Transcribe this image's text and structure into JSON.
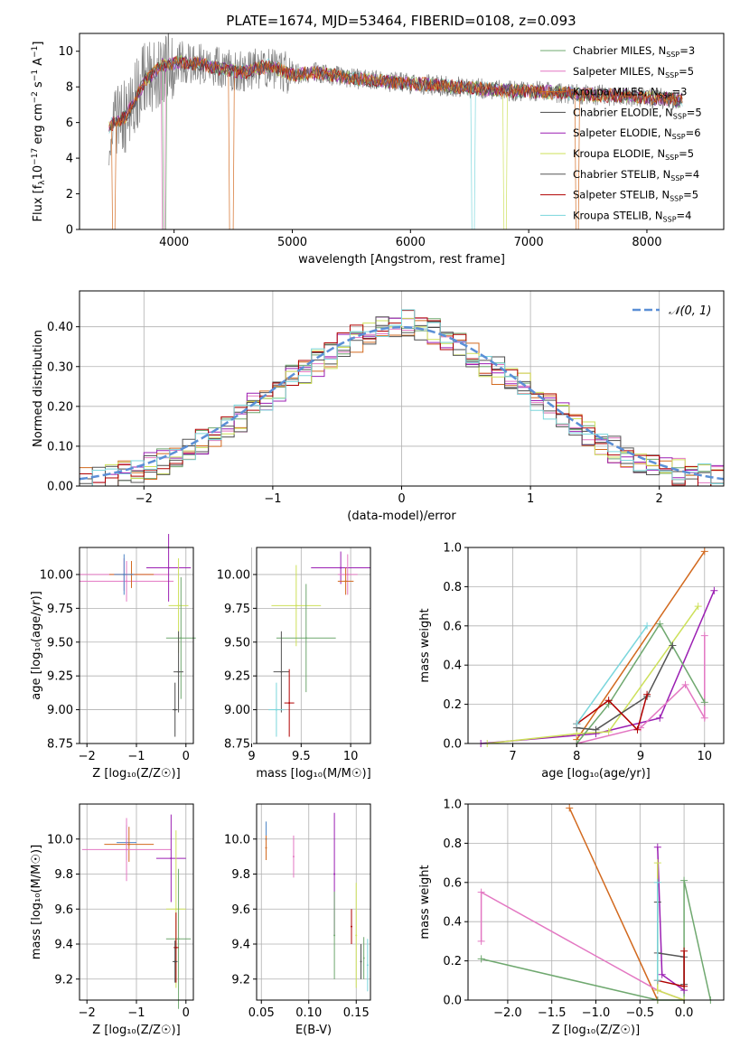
{
  "figure_title": "PLATE=1674, MJD=53464, FIBERID=0108, z=0.093",
  "colors": {
    "chabrier_miles": "#6fa86f",
    "salpeter_miles": "#e377c2",
    "kroupa_miles": "#d2691e",
    "chabrier_elodie": "#4a4a4a",
    "salpeter_elodie": "#9b1fb3",
    "kroupa_elodie": "#cde05a",
    "chabrier_stelib": "#555555",
    "salpeter_stelib": "#b00000",
    "kroupa_stelib": "#7ad6dc",
    "normal_curve": "#5b8fd6",
    "miles_main_line": "#d2691e",
    "blue": "#4f86c6"
  },
  "chart_data": [
    {
      "id": "spectrum",
      "type": "line",
      "title": "PLATE=1674, MJD=53464, FIBERID=0108, z=0.093",
      "xlabel": "wavelength [Angstrom, rest frame]",
      "ylabel": "Flux [f",
      "ylabel_sub": "λ",
      "ylabel_rest": "10",
      "ylabel_exp1": "−17",
      "ylabel_mid": " erg cm",
      "ylabel_exp2": "−2",
      "ylabel_s": " s",
      "ylabel_exp3": "−1",
      "ylabel_end": " A",
      "ylabel_exp4": "−1",
      "ylabel_close": "]",
      "xlim": [
        3200,
        8650
      ],
      "ylim": [
        0,
        11
      ],
      "xticks": [
        4000,
        5000,
        6000,
        7000,
        8000
      ],
      "yticks": [
        0,
        2,
        4,
        6,
        8,
        10
      ],
      "continuum": {
        "x": [
          3450,
          3600,
          3750,
          3900,
          4050,
          4200,
          4400,
          4600,
          4800,
          5000,
          5200,
          5400,
          5600,
          5800,
          6000,
          6200,
          6400,
          6600,
          6800,
          7000,
          7200,
          7400,
          7600,
          7800,
          8000,
          8200,
          8300
        ],
        "y": [
          5.8,
          6.4,
          8.3,
          9.2,
          9.4,
          9.3,
          9.0,
          8.8,
          9.2,
          8.7,
          8.8,
          8.6,
          8.4,
          8.3,
          8.2,
          8.1,
          8.0,
          7.9,
          7.8,
          7.75,
          7.7,
          7.6,
          7.55,
          7.5,
          7.4,
          7.3,
          7.25
        ]
      },
      "legend": [
        {
          "label": "Chabrier MILES, N",
          "sub": "SSP",
          "value": "=3",
          "color": "chabrier_miles"
        },
        {
          "label": "Salpeter MILES, N",
          "sub": "SSP",
          "value": "=5",
          "color": "salpeter_miles"
        },
        {
          "label": "Kroupa MILES, N",
          "sub": "SSP",
          "value": "=3",
          "color": "kroupa_miles"
        },
        {
          "label": "Chabrier ELODIE, N",
          "sub": "SSP",
          "value": "=5",
          "color": "chabrier_elodie"
        },
        {
          "label": "Salpeter ELODIE, N",
          "sub": "SSP",
          "value": "=6",
          "color": "salpeter_elodie"
        },
        {
          "label": "Kroupa ELODIE, N",
          "sub": "SSP",
          "value": "=5",
          "color": "kroupa_elodie"
        },
        {
          "label": "Chabrier STELIB, N",
          "sub": "SSP",
          "value": "=4",
          "color": "chabrier_stelib"
        },
        {
          "label": "Salpeter STELIB, N",
          "sub": "SSP",
          "value": "=5",
          "color": "salpeter_stelib"
        },
        {
          "label": "Kroupa STELIB, N",
          "sub": "SSP",
          "value": "=4",
          "color": "kroupa_stelib"
        }
      ],
      "legend_placement": "upper-right"
    },
    {
      "id": "residuals",
      "type": "step",
      "xlabel": "(data-model)/error",
      "ylabel": "Normed distribution",
      "xlim": [
        -2.5,
        2.5
      ],
      "ylim": [
        0,
        0.49
      ],
      "xticks": [
        -2,
        -1,
        0,
        1,
        2
      ],
      "yticks": [
        0.0,
        0.1,
        0.2,
        0.3,
        0.4
      ],
      "grid": true,
      "bin_edges": [
        -2.5,
        -2.4,
        -2.3,
        -2.2,
        -2.1,
        -2.0,
        -1.9,
        -1.8,
        -1.7,
        -1.6,
        -1.5,
        -1.4,
        -1.3,
        -1.2,
        -1.1,
        -1.0,
        -0.9,
        -0.8,
        -0.7,
        -0.6,
        -0.5,
        -0.4,
        -0.3,
        -0.2,
        -0.1,
        0.0,
        0.1,
        0.2,
        0.3,
        0.4,
        0.5,
        0.6,
        0.7,
        0.8,
        0.9,
        1.0,
        1.1,
        1.2,
        1.3,
        1.4,
        1.5,
        1.6,
        1.7,
        1.8,
        1.9,
        2.0,
        2.1,
        2.2,
        2.3,
        2.4,
        2.5
      ],
      "hist_base": [
        0.015,
        0.02,
        0.025,
        0.03,
        0.04,
        0.05,
        0.06,
        0.075,
        0.09,
        0.11,
        0.13,
        0.15,
        0.17,
        0.2,
        0.22,
        0.24,
        0.27,
        0.29,
        0.31,
        0.33,
        0.35,
        0.37,
        0.39,
        0.4,
        0.405,
        0.41,
        0.4,
        0.39,
        0.37,
        0.35,
        0.33,
        0.31,
        0.29,
        0.27,
        0.25,
        0.22,
        0.2,
        0.18,
        0.16,
        0.13,
        0.11,
        0.09,
        0.08,
        0.065,
        0.055,
        0.045,
        0.035,
        0.03,
        0.025,
        0.02
      ],
      "normal_label": "𝒩(0, 1)",
      "legend_placement": "upper-right"
    },
    {
      "id": "z-age",
      "type": "scatter",
      "xlabel": "Z [log₁₀(Z/Z☉)]",
      "ylabel": "age  [log₁₀(age/yr)]",
      "xlim": [
        -2.15,
        0.15
      ],
      "ylim": [
        8.75,
        10.2
      ],
      "xticks": [
        -2,
        -1,
        0
      ],
      "yticks": [
        8.75,
        9.0,
        9.25,
        9.5,
        9.75,
        10.0
      ],
      "grid": true,
      "points": [
        {
          "x": -1.25,
          "y": 10.0,
          "ex": 0.9,
          "ey": 0.12,
          "c": "salpeter_miles"
        },
        {
          "x": -1.2,
          "y": 9.95,
          "ex": 0.95,
          "ey": 0.15,
          "c": "salpeter_miles"
        },
        {
          "x": -1.1,
          "y": 10.0,
          "ex": 0.45,
          "ey": 0.1,
          "c": "kroupa_miles"
        },
        {
          "x": -1.25,
          "y": 10.0,
          "ex": 0.2,
          "ey": 0.15,
          "c": "blue"
        },
        {
          "x": -0.35,
          "y": 10.05,
          "ex": 0.45,
          "ey": 0.25,
          "c": "salpeter_elodie"
        },
        {
          "x": -0.15,
          "y": 9.77,
          "ex": 0.2,
          "ey": 0.35,
          "c": "kroupa_elodie"
        },
        {
          "x": -0.1,
          "y": 9.53,
          "ex": 0.3,
          "ey": 0.45,
          "c": "chabrier_miles"
        },
        {
          "x": -0.15,
          "y": 9.28,
          "ex": 0.1,
          "ey": 0.3,
          "c": "chabrier_stelib"
        },
        {
          "x": -0.22,
          "y": 9.0,
          "ex": 0.05,
          "ey": 0.2,
          "c": "chabrier_elodie"
        }
      ]
    },
    {
      "id": "mass-age",
      "type": "scatter",
      "xlabel": "mass [log₁₀(M/M☉)]",
      "ylabel": "",
      "xlim": [
        9.05,
        10.2
      ],
      "ylim": [
        8.75,
        10.2
      ],
      "xticks": [
        9.0,
        9.5,
        10.0
      ],
      "yticks": [
        8.75,
        9.0,
        9.25,
        9.5,
        9.75,
        10.0
      ],
      "grid": true,
      "points": [
        {
          "x": 9.9,
          "y": 10.05,
          "ex": 0.3,
          "ey": 0.12,
          "c": "salpeter_elodie"
        },
        {
          "x": 9.97,
          "y": 10.0,
          "ex": 0.1,
          "ey": 0.15,
          "c": "salpeter_miles"
        },
        {
          "x": 9.95,
          "y": 9.95,
          "ex": 0.08,
          "ey": 0.1,
          "c": "kroupa_miles"
        },
        {
          "x": 9.45,
          "y": 9.77,
          "ex": 0.25,
          "ey": 0.3,
          "c": "kroupa_elodie"
        },
        {
          "x": 9.55,
          "y": 9.53,
          "ex": 0.3,
          "ey": 0.4,
          "c": "chabrier_miles"
        },
        {
          "x": 9.3,
          "y": 9.28,
          "ex": 0.08,
          "ey": 0.3,
          "c": "chabrier_stelib"
        },
        {
          "x": 9.38,
          "y": 9.05,
          "ex": 0.05,
          "ey": 0.25,
          "c": "salpeter_stelib"
        },
        {
          "x": 9.25,
          "y": 9.0,
          "ex": 0.08,
          "ey": 0.2,
          "c": "kroupa_stelib"
        }
      ]
    },
    {
      "id": "age-weight",
      "type": "line",
      "xlabel": "age  [log₁₀(age/yr)]",
      "ylabel": "mass weight",
      "xlim": [
        6.3,
        10.3
      ],
      "ylim": [
        0,
        1.0
      ],
      "xticks": [
        7,
        8,
        9,
        10
      ],
      "yticks": [
        0.0,
        0.2,
        0.4,
        0.6,
        0.8,
        1.0
      ],
      "grid": true,
      "series": [
        {
          "c": "kroupa_miles",
          "x": [
            8.0,
            10.0
          ],
          "y": [
            0.02,
            0.98
          ]
        },
        {
          "c": "salpeter_elodie",
          "x": [
            6.5,
            8.3,
            9.3,
            10.15
          ],
          "y": [
            0.0,
            0.05,
            0.13,
            0.78
          ]
        },
        {
          "c": "kroupa_elodie",
          "x": [
            6.6,
            8.0,
            8.5,
            9.9
          ],
          "y": [
            0.0,
            0.05,
            0.06,
            0.7
          ]
        },
        {
          "c": "salpeter_miles",
          "x": [
            8.0,
            9.0,
            9.7,
            10.0,
            10.0
          ],
          "y": [
            0.0,
            0.08,
            0.3,
            0.13,
            0.55
          ]
        },
        {
          "c": "chabrier_miles",
          "x": [
            8.0,
            8.5,
            9.3,
            10.0
          ],
          "y": [
            0.0,
            0.2,
            0.61,
            0.21
          ]
        },
        {
          "c": "chabrier_stelib",
          "x": [
            8.0,
            8.3,
            9.1,
            9.5
          ],
          "y": [
            0.08,
            0.07,
            0.24,
            0.5
          ]
        },
        {
          "c": "salpeter_stelib",
          "x": [
            8.0,
            8.5,
            8.95,
            9.1
          ],
          "y": [
            0.1,
            0.22,
            0.07,
            0.25
          ]
        },
        {
          "c": "kroupa_stelib",
          "x": [
            8.0,
            9.1
          ],
          "y": [
            0.1,
            0.6
          ]
        }
      ]
    },
    {
      "id": "z-mass",
      "type": "scatter",
      "xlabel": "Z [log₁₀(Z/Z☉)]",
      "ylabel": "mass [log₁₀(M/M☉)]",
      "xlim": [
        -2.15,
        0.15
      ],
      "ylim": [
        9.08,
        10.2
      ],
      "xticks": [
        -2,
        -1,
        0
      ],
      "yticks": [
        9.2,
        9.4,
        9.6,
        9.8,
        10.0
      ],
      "grid": true,
      "points": [
        {
          "x": -1.2,
          "y": 9.98,
          "ex": 0.2,
          "ey": 0.1,
          "c": "blue"
        },
        {
          "x": -1.15,
          "y": 9.97,
          "ex": 0.5,
          "ey": 0.1,
          "c": "kroupa_miles"
        },
        {
          "x": -1.2,
          "y": 9.94,
          "ex": 0.9,
          "ey": 0.18,
          "c": "salpeter_miles"
        },
        {
          "x": -0.3,
          "y": 9.89,
          "ex": 0.3,
          "ey": 0.25,
          "c": "salpeter_elodie"
        },
        {
          "x": -0.2,
          "y": 9.6,
          "ex": 0.2,
          "ey": 0.45,
          "c": "kroupa_elodie"
        },
        {
          "x": -0.15,
          "y": 9.43,
          "ex": 0.25,
          "ey": 0.4,
          "c": "chabrier_miles"
        },
        {
          "x": -0.2,
          "y": 9.38,
          "ex": 0.05,
          "ey": 0.2,
          "c": "salpeter_stelib"
        },
        {
          "x": -0.22,
          "y": 9.3,
          "ex": 0.05,
          "ey": 0.12,
          "c": "chabrier_elodie"
        }
      ]
    },
    {
      "id": "ebv-mass",
      "type": "scatter",
      "xlabel": "E(B-V)",
      "ylabel": "",
      "xlim": [
        0.045,
        0.165
      ],
      "ylim": [
        9.08,
        10.2
      ],
      "xticks": [
        0.05,
        0.1,
        0.15
      ],
      "xticklabels": [
        "0.05",
        "0.10",
        "0.15"
      ],
      "yticks": [
        9.2,
        9.4,
        9.6,
        9.8,
        10.0
      ],
      "grid": true,
      "points": [
        {
          "x": 0.055,
          "y": 10.0,
          "ey": 0.1,
          "c": "blue"
        },
        {
          "x": 0.055,
          "y": 9.95,
          "ey": 0.07,
          "c": "kroupa_miles"
        },
        {
          "x": 0.084,
          "y": 9.9,
          "ey": 0.12,
          "c": "salpeter_miles"
        },
        {
          "x": 0.127,
          "y": 9.8,
          "ey": 0.35,
          "c": "salpeter_elodie"
        },
        {
          "x": 0.127,
          "y": 9.45,
          "ey": 0.25,
          "c": "chabrier_miles"
        },
        {
          "x": 0.145,
          "y": 9.5,
          "ey": 0.1,
          "c": "salpeter_stelib"
        },
        {
          "x": 0.15,
          "y": 9.45,
          "ey": 0.3,
          "c": "kroupa_elodie"
        },
        {
          "x": 0.155,
          "y": 9.3,
          "ey": 0.1,
          "c": "chabrier_elodie"
        },
        {
          "x": 0.158,
          "y": 9.32,
          "ey": 0.12,
          "c": "chabrier_miles"
        },
        {
          "x": 0.162,
          "y": 9.28,
          "ey": 0.15,
          "c": "kroupa_stelib"
        }
      ]
    },
    {
      "id": "z-weight",
      "type": "line",
      "xlabel": "Z [log₁₀(Z/Z☉)]",
      "ylabel": "mass weight",
      "xlim": [
        -2.45,
        0.45
      ],
      "ylim": [
        0,
        1.0
      ],
      "xticks": [
        -2.0,
        -1.5,
        -1.0,
        -0.5,
        0.0
      ],
      "xticklabels": [
        "−2.0",
        "−1.5",
        "−1.0",
        "−0.5",
        "0.0"
      ],
      "yticks": [
        0.0,
        0.2,
        0.4,
        0.6,
        0.8,
        1.0
      ],
      "grid": true,
      "series": [
        {
          "c": "kroupa_miles",
          "x": [
            -1.3,
            -0.3
          ],
          "y": [
            0.98,
            0.0
          ]
        },
        {
          "c": "salpeter_miles",
          "x": [
            -2.3,
            -2.3,
            -0.3,
            0.0
          ],
          "y": [
            0.3,
            0.55,
            0.05,
            0.0
          ]
        },
        {
          "c": "chabrier_miles",
          "x": [
            -2.3,
            -0.3,
            0.0,
            0.0,
            0.3
          ],
          "y": [
            0.21,
            0.0,
            0.0,
            0.61,
            0.0
          ]
        },
        {
          "c": "salpeter_elodie",
          "x": [
            -0.3,
            -0.25,
            0.0
          ],
          "y": [
            0.78,
            0.13,
            0.05
          ]
        },
        {
          "c": "kroupa_elodie",
          "x": [
            -0.3,
            -0.3,
            0.0
          ],
          "y": [
            0.7,
            0.05,
            0.0
          ]
        },
        {
          "c": "chabrier_stelib",
          "x": [
            -0.3,
            -0.3,
            0.0,
            0.0
          ],
          "y": [
            0.5,
            0.24,
            0.22,
            0.08
          ]
        },
        {
          "c": "salpeter_stelib",
          "x": [
            -0.3,
            0.0,
            0.0
          ],
          "y": [
            0.1,
            0.07,
            0.25
          ]
        },
        {
          "c": "kroupa_stelib",
          "x": [
            -0.3,
            -0.3
          ],
          "y": [
            0.6,
            0.1
          ]
        }
      ]
    }
  ]
}
